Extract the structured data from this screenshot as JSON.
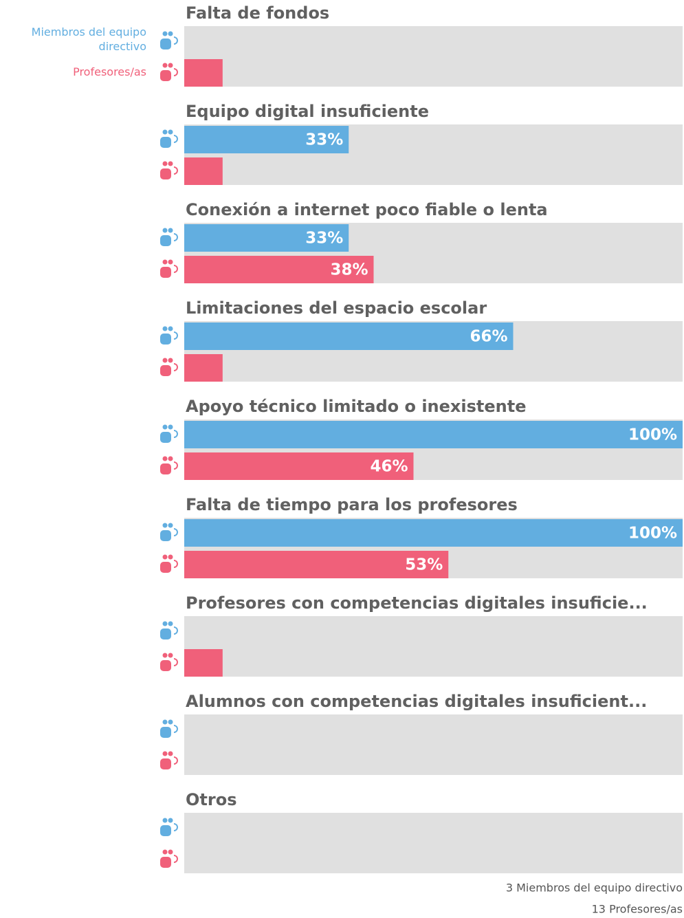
{
  "chart_data": {
    "type": "bar",
    "orientation": "horizontal",
    "categories": [
      "Falta de fondos",
      "Equipo digital insuficiente",
      "Conexión a internet poco fiable o lenta",
      "Limitaciones del espacio escolar",
      "Apoyo técnico limitado o inexistente",
      "Falta de tiempo para los profesores",
      "Profesores con competencias digitales insuficie...",
      "Alumnos con competencias digitales insuficient...",
      "Otros"
    ],
    "xlim": [
      0,
      100
    ],
    "series": [
      {
        "name": "Miembros del equipo directivo",
        "color": "#62aee0",
        "values": [
          0,
          33,
          33,
          66,
          100,
          100,
          0,
          0,
          0
        ],
        "value_labels": [
          null,
          "33%",
          "33%",
          "66%",
          "100%",
          "100%",
          null,
          null,
          null
        ]
      },
      {
        "name": "Profesores/as",
        "color": "#f0607a",
        "values": [
          7.7,
          7.7,
          38,
          7.7,
          46,
          53,
          7.7,
          0,
          0
        ],
        "value_labels": [
          null,
          null,
          "38%",
          null,
          "46%",
          "53%",
          null,
          null,
          null
        ]
      }
    ],
    "footnotes": [
      "3 Miembros del equipo directivo",
      "13 Profesores/as"
    ]
  }
}
